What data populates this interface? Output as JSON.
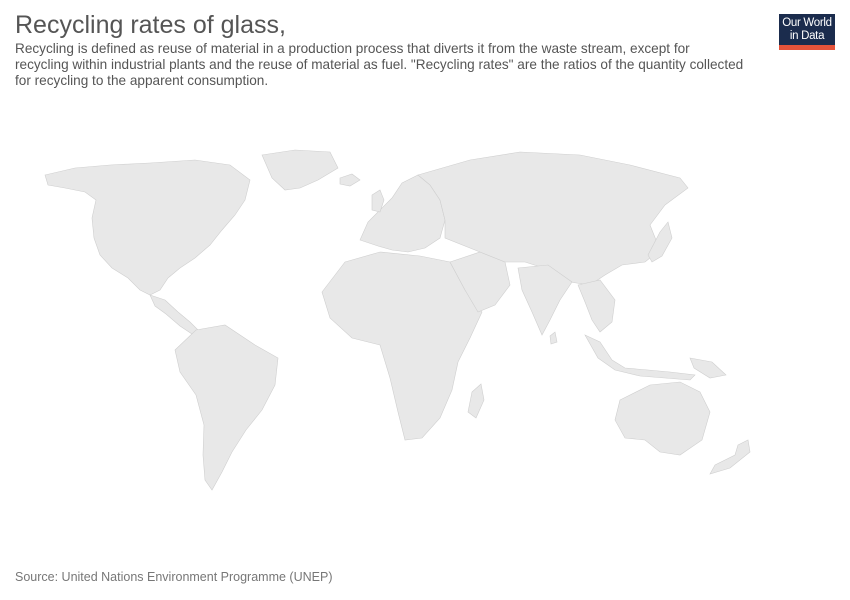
{
  "header": {
    "title": "Recycling rates of glass,",
    "subtitle": "Recycling is defined as reuse of material in a production process that diverts it from the waste stream, except for recycling within industrial plants and the reuse of material as fuel. \"Recycling rates\" are the ratios of the quantity collected for recycling to the apparent consumption."
  },
  "logo": {
    "line1": "Our World",
    "line2": "in Data",
    "colors": {
      "background": "#1b2c4d",
      "accent": "#e5533a"
    }
  },
  "map": {
    "land_color": "#e8e8e8",
    "border_color": "#cfcfcf",
    "regions": [
      "north-america",
      "greenland",
      "central-america",
      "south-america",
      "europe",
      "africa",
      "madagascar",
      "asia",
      "middle-east",
      "india",
      "southeast-asia",
      "indonesia",
      "japan",
      "australia",
      "new-zealand",
      "iceland",
      "uk",
      "papua-new-guinea",
      "sri-lanka"
    ]
  },
  "footer": {
    "source": "Source: United Nations Environment Programme (UNEP)"
  }
}
